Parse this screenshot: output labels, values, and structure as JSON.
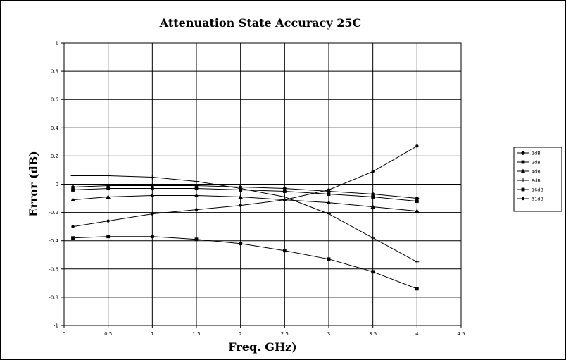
{
  "chart_data": {
    "type": "line",
    "title": "Attenuation State Accuracy 25C",
    "xlabel": "Freq. GHz)",
    "ylabel": "Error (dB)",
    "xlim": [
      0,
      4.5
    ],
    "ylim": [
      -1,
      1
    ],
    "xticks": [
      {
        "v": 0,
        "label": "0"
      },
      {
        "v": 0.5,
        "label": "0.5"
      },
      {
        "v": 1,
        "label": "1"
      },
      {
        "v": 1.5,
        "label": "1.5"
      },
      {
        "v": 2,
        "label": "2"
      },
      {
        "v": 2.5,
        "label": "2.5"
      },
      {
        "v": 3,
        "label": "3"
      },
      {
        "v": 3.5,
        "label": "3.5"
      },
      {
        "v": 4,
        "label": "4"
      },
      {
        "v": 4.5,
        "label": "4.5"
      }
    ],
    "yticks": [
      {
        "v": 1,
        "label": "1"
      },
      {
        "v": 0.8,
        "label": "0.8"
      },
      {
        "v": 0.6,
        "label": "0.6"
      },
      {
        "v": 0.4,
        "label": "0.4"
      },
      {
        "v": 0.2,
        "label": "0.2"
      },
      {
        "v": 0,
        "label": "0"
      },
      {
        "v": -0.2,
        "label": "-0.2"
      },
      {
        "v": -0.4,
        "label": "-0.4"
      },
      {
        "v": -0.6,
        "label": "-0.6"
      },
      {
        "v": -0.8,
        "label": "-0.8"
      },
      {
        "v": -1,
        "label": "-1"
      }
    ],
    "grid": true,
    "legend_position": "right",
    "x": [
      0.1,
      0.5,
      1.0,
      1.5,
      2.0,
      2.5,
      3.0,
      3.5,
      4.0
    ],
    "series": [
      {
        "name": "1dB",
        "marker": "diamond",
        "values": [
          -0.02,
          -0.01,
          -0.01,
          -0.01,
          -0.02,
          -0.03,
          -0.05,
          -0.07,
          -0.1
        ]
      },
      {
        "name": "2dB",
        "marker": "square",
        "values": [
          -0.04,
          -0.03,
          -0.03,
          -0.03,
          -0.04,
          -0.05,
          -0.07,
          -0.09,
          -0.12
        ]
      },
      {
        "name": "4dB",
        "marker": "triangle",
        "values": [
          -0.11,
          -0.09,
          -0.08,
          -0.08,
          -0.09,
          -0.11,
          -0.13,
          -0.16,
          -0.19
        ]
      },
      {
        "name": "8dB",
        "marker": "cross",
        "values": [
          0.06,
          0.06,
          0.05,
          0.02,
          -0.03,
          -0.09,
          -0.21,
          -0.38,
          -0.55
        ]
      },
      {
        "name": "16dB",
        "marker": "square",
        "values": [
          -0.38,
          -0.37,
          -0.37,
          -0.39,
          -0.42,
          -0.47,
          -0.53,
          -0.62,
          -0.74
        ]
      },
      {
        "name": "31dB",
        "marker": "dot",
        "values": [
          -0.3,
          -0.26,
          -0.21,
          -0.18,
          -0.15,
          -0.11,
          -0.04,
          0.09,
          0.27
        ]
      }
    ]
  }
}
